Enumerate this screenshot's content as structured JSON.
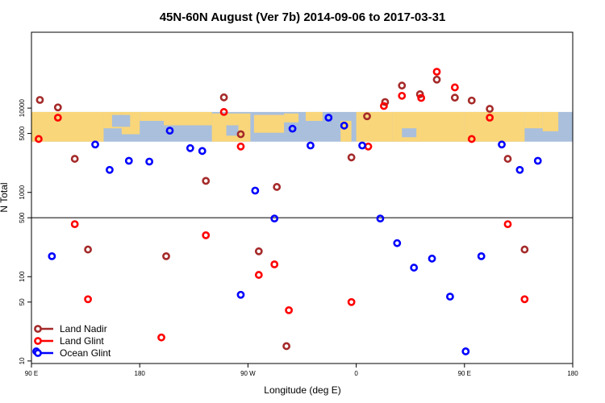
{
  "chart_data": {
    "type": "scatter",
    "title": "45N-60N August (Ver 7b)   2014-09-06 to 2017-03-31",
    "xlabel": "Longitude (deg E)",
    "ylabel": "N Total",
    "x_ticks": [
      {
        "value": 90,
        "label": "90 E"
      },
      {
        "value": 180,
        "label": "180"
      },
      {
        "value": 270,
        "label": "90 W"
      },
      {
        "value": 360,
        "label": "0"
      },
      {
        "value": 450,
        "label": "90 E"
      },
      {
        "value": 540,
        "label": "180"
      }
    ],
    "y_ticks": [
      {
        "value": 10,
        "label": "10"
      },
      {
        "value": 50,
        "label": "50"
      },
      {
        "value": 100,
        "label": "100"
      },
      {
        "value": 500,
        "label": "500"
      },
      {
        "value": 1000,
        "label": "1000"
      },
      {
        "value": 5000,
        "label": "5000"
      },
      {
        "value": 10000,
        "label": "10000"
      }
    ],
    "xlim": [
      90,
      540
    ],
    "ylim_log10": [
      0.97,
      4.9
    ],
    "y_scale": "log",
    "reference_line_y": 500,
    "map_band_y": [
      4000,
      9000
    ],
    "legend_position": "bottom-left",
    "series": [
      {
        "name": "Land Nadir",
        "color": "#a52a2a",
        "points": [
          {
            "x": 97,
            "y": 12500
          },
          {
            "x": 112,
            "y": 10200
          },
          {
            "x": 126,
            "y": 2500
          },
          {
            "x": 137,
            "y": 210
          },
          {
            "x": 202,
            "y": 175
          },
          {
            "x": 235,
            "y": 1370
          },
          {
            "x": 250,
            "y": 13400
          },
          {
            "x": 264,
            "y": 4900
          },
          {
            "x": 279,
            "y": 200
          },
          {
            "x": 294,
            "y": 1160
          },
          {
            "x": 302,
            "y": 15
          },
          {
            "x": 356,
            "y": 2600
          },
          {
            "x": 369,
            "y": 8000
          },
          {
            "x": 384,
            "y": 11800
          },
          {
            "x": 398,
            "y": 18500
          },
          {
            "x": 413,
            "y": 14600
          },
          {
            "x": 427,
            "y": 21800
          },
          {
            "x": 442,
            "y": 13300
          },
          {
            "x": 456,
            "y": 12300
          },
          {
            "x": 471,
            "y": 9800
          },
          {
            "x": 486,
            "y": 2500
          },
          {
            "x": 500,
            "y": 210
          }
        ]
      },
      {
        "name": "Land Glint",
        "color": "#ff0000",
        "points": [
          {
            "x": 96,
            "y": 4300
          },
          {
            "x": 112,
            "y": 7700
          },
          {
            "x": 126,
            "y": 420
          },
          {
            "x": 137,
            "y": 54
          },
          {
            "x": 198,
            "y": 19
          },
          {
            "x": 235,
            "y": 310
          },
          {
            "x": 250,
            "y": 9000
          },
          {
            "x": 264,
            "y": 3500
          },
          {
            "x": 279,
            "y": 105
          },
          {
            "x": 292,
            "y": 140
          },
          {
            "x": 304,
            "y": 40
          },
          {
            "x": 356,
            "y": 50
          },
          {
            "x": 370,
            "y": 3500
          },
          {
            "x": 383,
            "y": 10600
          },
          {
            "x": 398,
            "y": 14000
          },
          {
            "x": 414,
            "y": 13200
          },
          {
            "x": 427,
            "y": 27000
          },
          {
            "x": 442,
            "y": 17600
          },
          {
            "x": 456,
            "y": 4300
          },
          {
            "x": 471,
            "y": 7700
          },
          {
            "x": 486,
            "y": 420
          },
          {
            "x": 500,
            "y": 54
          }
        ]
      },
      {
        "name": "Ocean Glint",
        "color": "#0000ff",
        "points": [
          {
            "x": 94,
            "y": 13
          },
          {
            "x": 107,
            "y": 175
          },
          {
            "x": 143,
            "y": 3700
          },
          {
            "x": 155,
            "y": 1850
          },
          {
            "x": 171,
            "y": 2370
          },
          {
            "x": 188,
            "y": 2320
          },
          {
            "x": 205,
            "y": 5400
          },
          {
            "x": 222,
            "y": 3350
          },
          {
            "x": 232,
            "y": 3100
          },
          {
            "x": 264,
            "y": 61
          },
          {
            "x": 276,
            "y": 1050
          },
          {
            "x": 292,
            "y": 490
          },
          {
            "x": 307,
            "y": 5700
          },
          {
            "x": 322,
            "y": 3600
          },
          {
            "x": 337,
            "y": 7700
          },
          {
            "x": 350,
            "y": 6200
          },
          {
            "x": 365,
            "y": 3600
          },
          {
            "x": 380,
            "y": 490
          },
          {
            "x": 394,
            "y": 250
          },
          {
            "x": 408,
            "y": 128
          },
          {
            "x": 423,
            "y": 164
          },
          {
            "x": 438,
            "y": 58
          },
          {
            "x": 451,
            "y": 13
          },
          {
            "x": 464,
            "y": 175
          },
          {
            "x": 481,
            "y": 3700
          },
          {
            "x": 496,
            "y": 1850
          },
          {
            "x": 511,
            "y": 2370
          }
        ]
      }
    ]
  },
  "colors": {
    "ocean": "#a9bfdc",
    "land": "#f9d67a",
    "axis": "#000000"
  }
}
